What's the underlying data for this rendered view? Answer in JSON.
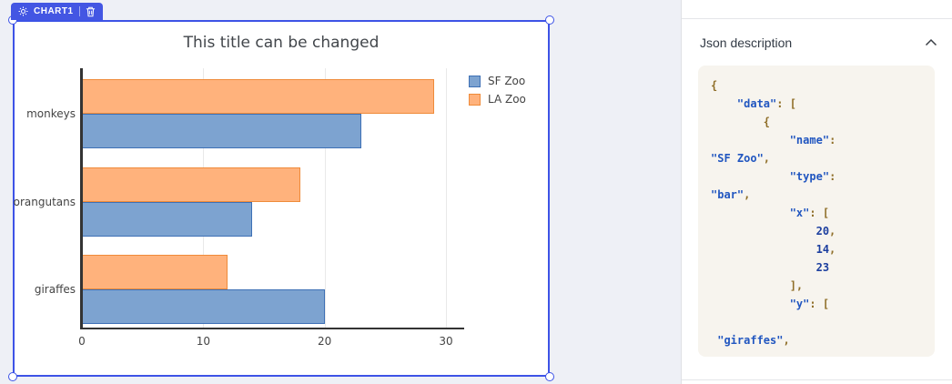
{
  "workspace": {
    "badge": {
      "label": "CHART1"
    }
  },
  "chart_data": {
    "type": "bar",
    "orientation": "horizontal",
    "title": "This title can be changed",
    "categories": [
      "monkeys",
      "orangutans",
      "giraffes"
    ],
    "series": [
      {
        "name": "SF Zoo",
        "values": [
          23,
          14,
          20
        ],
        "fill": "#7da3d0",
        "border": "#3e70b5"
      },
      {
        "name": "LA Zoo",
        "values": [
          29,
          18,
          12
        ],
        "fill": "#ffb27c",
        "border": "#ef8b3a"
      }
    ],
    "xticks": [
      0,
      10,
      20,
      30
    ],
    "xlim": [
      0,
      30
    ],
    "grid": true,
    "legend_position": "top-right-outside"
  },
  "panel": {
    "header": "Json description",
    "code": {
      "lines": [
        [
          [
            "p",
            "{"
          ]
        ],
        [
          [
            "w",
            "    "
          ],
          [
            "s",
            "\"data\""
          ],
          [
            "p",
            ": ["
          ]
        ],
        [
          [
            "w",
            "        "
          ],
          [
            "p",
            "{"
          ]
        ],
        [
          [
            "w",
            "            "
          ],
          [
            "s",
            "\"name\""
          ],
          [
            "p",
            ":"
          ]
        ],
        [
          [
            "s",
            "\"SF Zoo\""
          ],
          [
            "p",
            ","
          ]
        ],
        [
          [
            "w",
            "            "
          ],
          [
            "s",
            "\"type\""
          ],
          [
            "p",
            ":"
          ]
        ],
        [
          [
            "s",
            "\"bar\""
          ],
          [
            "p",
            ","
          ]
        ],
        [
          [
            "w",
            "            "
          ],
          [
            "s",
            "\"x\""
          ],
          [
            "p",
            ": ["
          ]
        ],
        [
          [
            "w",
            "                "
          ],
          [
            "n",
            "20"
          ],
          [
            "p",
            ","
          ]
        ],
        [
          [
            "w",
            "                "
          ],
          [
            "n",
            "14"
          ],
          [
            "p",
            ","
          ]
        ],
        [
          [
            "w",
            "                "
          ],
          [
            "n",
            "23"
          ]
        ],
        [
          [
            "w",
            "            "
          ],
          [
            "p",
            "],"
          ]
        ],
        [
          [
            "w",
            "            "
          ],
          [
            "s",
            "\"y\""
          ],
          [
            "p",
            ": ["
          ]
        ],
        [],
        [
          [
            "w",
            " "
          ],
          [
            "s",
            "\"giraffes\""
          ],
          [
            "p",
            ","
          ]
        ]
      ]
    }
  },
  "colors": {
    "selection_blue": "#3d53e6",
    "badge_blue": "#4356e3",
    "workspace_bg": "#eef0f6",
    "code_bg": "#f7f4ee",
    "code_string": "#2156c0",
    "code_number": "#1d3f9f",
    "code_punct": "#8f6e28",
    "bar_blue_fill": "#7da3d0",
    "bar_blue_border": "#3e70b5",
    "bar_orange_fill": "#ffb27c",
    "bar_orange_border": "#ef8b3a"
  }
}
